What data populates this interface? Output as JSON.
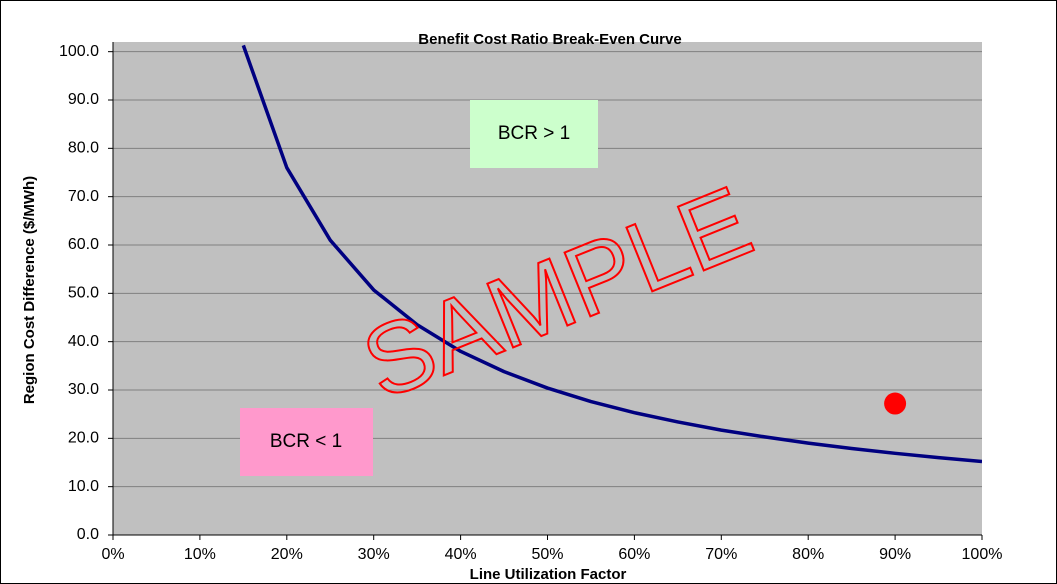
{
  "chart_data": {
    "type": "line",
    "title": "Benefit Cost Ratio Break-Even Curve",
    "x_label": "Line Utilization Factor",
    "y_label": "Region Cost Difference ($/MWh)",
    "annotations": [
      "BCR > 1",
      "BCR < 1",
      "SAMPLE"
    ],
    "series": [
      {
        "color": "#000080",
        "style": "line",
        "x": [
          15,
          20,
          25,
          30,
          35,
          40,
          45,
          50,
          55,
          60,
          65,
          70,
          75,
          80,
          85,
          90,
          95,
          100
        ],
        "values": [
          101.3,
          76,
          61,
          50.7,
          43.5,
          38,
          33.8,
          30.4,
          27.6,
          25.3,
          23.4,
          21.7,
          20.3,
          19,
          17.9,
          16.9,
          16,
          15.2
        ]
      },
      {
        "color": "#ff0000",
        "style": "marker",
        "x": [
          90
        ],
        "values": [
          27.2
        ]
      }
    ],
    "xlim": [
      0,
      100
    ],
    "xticks": [
      {
        "value": 0,
        "label": "0%"
      },
      {
        "value": 10,
        "label": "10%"
      },
      {
        "value": 20,
        "label": "20%"
      },
      {
        "value": 30,
        "label": "30%"
      },
      {
        "value": 40,
        "label": "40%"
      },
      {
        "value": 50,
        "label": "50%"
      },
      {
        "value": 60,
        "label": "60%"
      },
      {
        "value": 70,
        "label": "70%"
      },
      {
        "value": 80,
        "label": "80%"
      },
      {
        "value": 90,
        "label": "90%"
      },
      {
        "value": 100,
        "label": "100%"
      }
    ],
    "ylim": [
      0,
      102
    ],
    "yticks": [
      {
        "value": 0,
        "label": "0.0"
      },
      {
        "value": 10,
        "label": "10.0"
      },
      {
        "value": 20,
        "label": "20.0"
      },
      {
        "value": 30,
        "label": "30.0"
      },
      {
        "value": 40,
        "label": "40.0"
      },
      {
        "value": 50,
        "label": "50.0"
      },
      {
        "value": 60,
        "label": "60.0"
      },
      {
        "value": 70,
        "label": "70.0"
      },
      {
        "value": 80,
        "label": "80.0"
      },
      {
        "value": 90,
        "label": "90.0"
      },
      {
        "value": 100,
        "label": "100.0"
      }
    ],
    "grid": true,
    "plot_background": "#c0c0c0"
  }
}
